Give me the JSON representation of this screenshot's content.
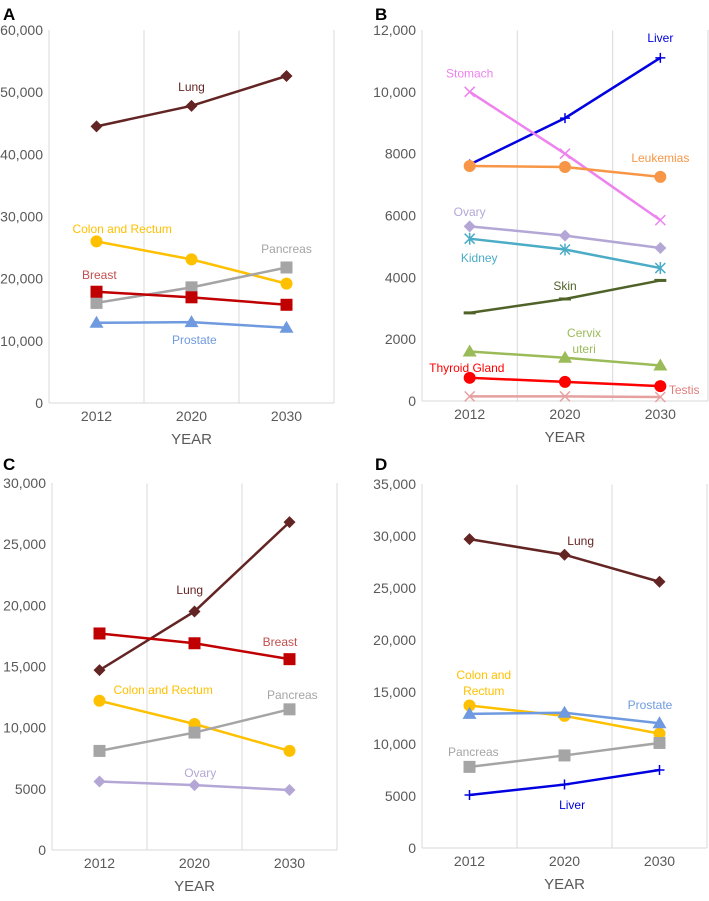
{
  "chart_data": [
    {
      "panel": "A",
      "type": "line",
      "xlabel": "YEAR",
      "ylabel": "",
      "categories": [
        "2012",
        "2020",
        "2030"
      ],
      "ylim": [
        0,
        60000
      ],
      "yticks": [
        "0",
        "10,000",
        "20,000",
        "30,000",
        "40,000",
        "50,000",
        "60,000"
      ],
      "series": [
        {
          "name": "Lung",
          "color": "#632523",
          "label_color": "#632523",
          "marker": "diamond",
          "values": [
            44500,
            47800,
            52600
          ],
          "label_pos": [
            1.0,
            50800
          ]
        },
        {
          "name": "Colon and Rectum",
          "color": "#FFC000",
          "label_color": "#FFC000",
          "marker": "circle",
          "values": [
            26000,
            23100,
            19200
          ],
          "label_pos": [
            0.27,
            28000
          ]
        },
        {
          "name": "Pancreas",
          "color": "#A5A5A5",
          "label_color": "#A5A5A5",
          "marker": "square",
          "values": [
            16100,
            18600,
            21800
          ],
          "label_pos": [
            2.0,
            24800
          ]
        },
        {
          "name": "Breast",
          "color": "#C00000",
          "label_color": "#C0504D",
          "marker": "square",
          "values": [
            17900,
            17000,
            15800
          ],
          "label_pos": [
            0.03,
            20600
          ]
        },
        {
          "name": "Prostate",
          "color": "#6F9AE0",
          "label_color": "#6F9AE0",
          "marker": "triangle",
          "values": [
            12900,
            13000,
            12100
          ],
          "label_pos": [
            1.03,
            10100
          ]
        }
      ]
    },
    {
      "panel": "B",
      "type": "line",
      "xlabel": "YEAR",
      "ylabel": "",
      "categories": [
        "2012",
        "2020",
        "2030"
      ],
      "ylim": [
        0,
        12000
      ],
      "yticks": [
        "0",
        "2000",
        "4000",
        "6000",
        "8000",
        "10,000",
        "12,000"
      ],
      "series": [
        {
          "name": "Liver",
          "color": "#0000E0",
          "label_color": "#0000E0",
          "marker": "plus",
          "values": [
            7650,
            9150,
            11100
          ],
          "label_pos": [
            2.0,
            11740
          ]
        },
        {
          "name": "Stomach",
          "color": "#EE82EE",
          "label_color": "#EE82EE",
          "marker": "x",
          "values": [
            10000,
            8000,
            5850
          ],
          "label_pos": [
            0.0,
            10600
          ]
        },
        {
          "name": "Leukemias",
          "color": "#F79646",
          "label_color": "#F79646",
          "marker": "circle",
          "values": [
            7600,
            7570,
            7250
          ],
          "label_pos": [
            2.0,
            7860
          ]
        },
        {
          "name": "Ovary",
          "color": "#B4A7D6",
          "label_color": "#B4A7D6",
          "marker": "diamond",
          "values": [
            5650,
            5350,
            4950
          ],
          "label_pos": [
            0.0,
            6110
          ]
        },
        {
          "name": "Kidney",
          "color": "#4BACC6",
          "label_color": "#4BACC6",
          "marker": "star",
          "values": [
            5250,
            4900,
            4300
          ],
          "label_pos": [
            0.1,
            4630
          ]
        },
        {
          "name": "Skin",
          "color": "#4F6228",
          "label_color": "#4F6228",
          "marker": "dash",
          "values": [
            2850,
            3300,
            3900
          ],
          "label_pos": [
            1.0,
            3720
          ]
        },
        {
          "name": "Cervix uteri",
          "label_lines": [
            "Cervix",
            "uteri"
          ],
          "color": "#9BBB59",
          "label_color": "#9BBB59",
          "marker": "triangle",
          "values": [
            1600,
            1400,
            1150
          ],
          "label_pos": [
            1.2,
            2200
          ]
        },
        {
          "name": "Thyroid Gland",
          "color": "#FF0000",
          "label_color": "#FF0000",
          "marker": "circle",
          "values": [
            750,
            620,
            480
          ],
          "label_pos": [
            -0.03,
            1070
          ]
        },
        {
          "name": "Testis",
          "color": "#E6A0A0",
          "label_color": "#E07C7C",
          "marker": "x",
          "values": [
            150,
            150,
            130
          ],
          "label_pos": [
            2.25,
            360
          ]
        }
      ]
    },
    {
      "panel": "C",
      "type": "line",
      "xlabel": "YEAR",
      "ylabel": "",
      "categories": [
        "2012",
        "2020",
        "2030"
      ],
      "ylim": [
        0,
        30000
      ],
      "yticks": [
        "0",
        "5000",
        "10,000",
        "15,000",
        "20,000",
        "25,000",
        "30,000"
      ],
      "series": [
        {
          "name": "Lung",
          "color": "#632523",
          "label_color": "#632523",
          "marker": "diamond",
          "values": [
            14700,
            19500,
            26800
          ],
          "label_pos": [
            0.95,
            21250
          ]
        },
        {
          "name": "Breast",
          "color": "#C00000",
          "label_color": "#C0504D",
          "marker": "square",
          "values": [
            17700,
            16900,
            15600
          ],
          "label_pos": [
            1.9,
            17000
          ]
        },
        {
          "name": "Colon and Rectum",
          "color": "#FFC000",
          "label_color": "#FFC000",
          "marker": "circle",
          "values": [
            12200,
            10300,
            8100
          ],
          "label_pos": [
            0.67,
            13080
          ]
        },
        {
          "name": "Pancreas",
          "color": "#A5A5A5",
          "label_color": "#A5A5A5",
          "marker": "square",
          "values": [
            8100,
            9600,
            11500
          ],
          "label_pos": [
            2.03,
            12670
          ]
        },
        {
          "name": "Ovary",
          "color": "#B4A7D6",
          "label_color": "#B4A7D6",
          "marker": "diamond",
          "values": [
            5600,
            5300,
            4900
          ],
          "label_pos": [
            1.06,
            6290
          ]
        }
      ]
    },
    {
      "panel": "D",
      "type": "line",
      "xlabel": "YEAR",
      "ylabel": "",
      "categories": [
        "2012",
        "2020",
        "2030"
      ],
      "ylim": [
        0,
        35000
      ],
      "yticks": [
        "0",
        "5000",
        "10,000",
        "15,000",
        "20,000",
        "25,000",
        "30,000",
        "35,000"
      ],
      "series": [
        {
          "name": "Lung",
          "color": "#632523",
          "label_color": "#632523",
          "marker": "diamond",
          "values": [
            29700,
            28200,
            25600
          ],
          "label_pos": [
            1.17,
            29520
          ]
        },
        {
          "name": "Colon and Rectum",
          "label_lines": [
            "Colon and",
            "Rectum"
          ],
          "color": "#FFC000",
          "label_color": "#FFC000",
          "marker": "circle",
          "values": [
            13700,
            12700,
            11000
          ],
          "label_pos": [
            0.15,
            16630
          ]
        },
        {
          "name": "Prostate",
          "color": "#6F9AE0",
          "label_color": "#6F9AE0",
          "marker": "triangle",
          "values": [
            12900,
            13000,
            12000
          ],
          "label_pos": [
            1.9,
            13750
          ]
        },
        {
          "name": "Pancreas",
          "color": "#A5A5A5",
          "label_color": "#A5A5A5",
          "marker": "square",
          "values": [
            7800,
            8900,
            10100
          ],
          "label_pos": [
            0.04,
            9230
          ]
        },
        {
          "name": "Liver",
          "color": "#0000E0",
          "label_color": "#0000E0",
          "marker": "plus",
          "values": [
            5100,
            6100,
            7500
          ],
          "label_pos": [
            1.08,
            4130
          ]
        }
      ]
    }
  ]
}
